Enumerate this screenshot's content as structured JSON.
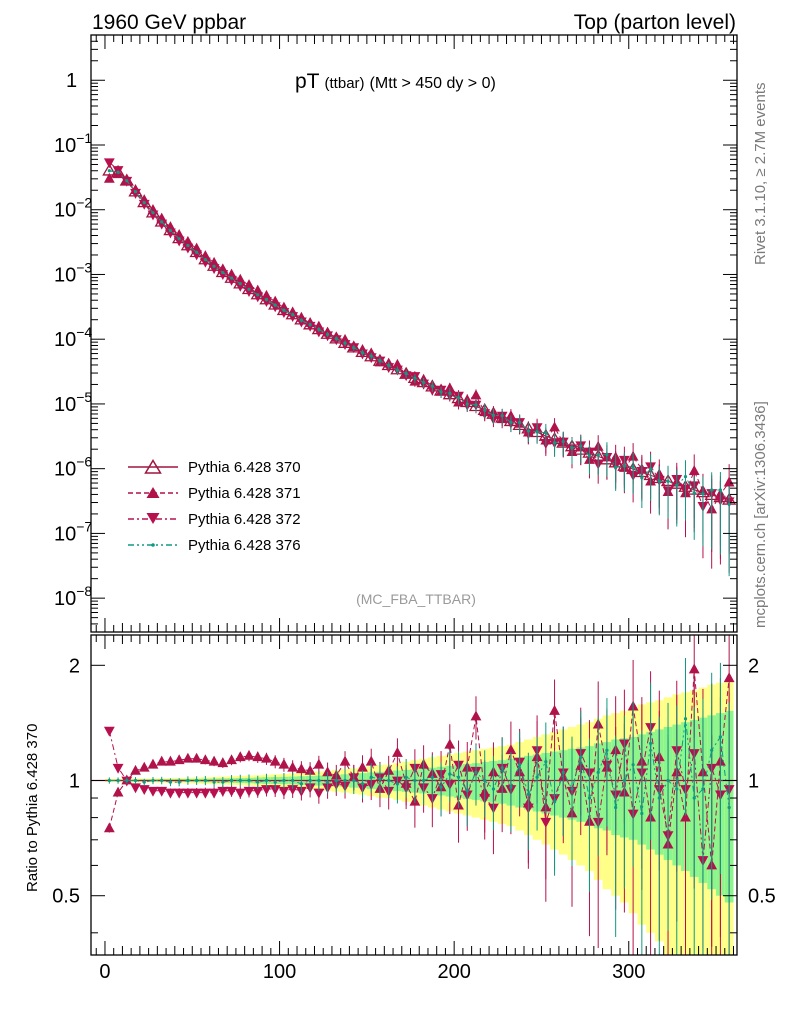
{
  "header": {
    "left": "1960 GeV ppbar",
    "right": "Top (parton level)"
  },
  "side": {
    "rivet": "Rivet 3.1.10, ≥ 2.7M events",
    "mcplots": "mcplots.cern.ch [arXiv:1306.3436]"
  },
  "plot_title": {
    "main": "pT",
    "sub": "(ttbar)",
    "rest": "(Mtt > 450 dy > 0)"
  },
  "analysis_tag": "(MC_FBA_TTBAR)",
  "ratio_ylabel": "Ratio to Pythia 6.428 370",
  "colors": {
    "p370": "#a0153e",
    "p371": "#b0124a",
    "p372": "#b8104f",
    "p376": "#0f9a83",
    "band_outer": "#ffff88",
    "band_inner": "#8cf58c"
  },
  "chart_data": [
    {
      "type": "scatter",
      "panel": "main",
      "yscale": "log",
      "xlim": [
        -8,
        362
      ],
      "ylim": [
        3e-09,
        5
      ],
      "yticks": [
        {
          "v": 1,
          "label": "1",
          "exp": ""
        },
        {
          "v": 0.1,
          "label": "10",
          "exp": "−1"
        },
        {
          "v": 0.01,
          "label": "10",
          "exp": "−2"
        },
        {
          "v": 0.001,
          "label": "10",
          "exp": "−3"
        },
        {
          "v": 0.0001,
          "label": "10",
          "exp": "−4"
        },
        {
          "v": 1e-05,
          "label": "10",
          "exp": "−5"
        },
        {
          "v": 1e-06,
          "label": "10",
          "exp": "−6"
        },
        {
          "v": 1e-07,
          "label": "10",
          "exp": "−7"
        },
        {
          "v": 1e-08,
          "label": "10",
          "exp": "−8"
        }
      ],
      "legend_position": "lower-left",
      "series": [
        {
          "name": "Pythia 6.428 370",
          "marker": "triangle-up-open",
          "dash": "solid",
          "key": "p370"
        },
        {
          "name": "Pythia 6.428 371",
          "marker": "triangle-up",
          "dash": "dashed",
          "key": "p371"
        },
        {
          "name": "Pythia 6.428 372",
          "marker": "triangle-down",
          "dash": "dashdot",
          "key": "p372"
        },
        {
          "name": "Pythia 6.428 376",
          "marker": "dot",
          "dash": "dashdotdot",
          "key": "p376"
        }
      ],
      "reference": {
        "x": [
          2.5,
          7.5,
          12.5,
          17.5,
          22.5,
          27.5,
          32.5,
          37.5,
          42.5,
          47.5,
          52.5,
          57.5,
          62.5,
          67.5,
          72.5,
          77.5,
          82.5,
          87.5,
          92.5,
          97.5,
          102.5,
          107.5,
          112.5,
          117.5,
          122.5,
          127.5,
          132.5,
          137.5,
          142.5,
          147.5,
          152.5,
          157.5,
          162.5,
          167.5,
          172.5,
          177.5,
          182.5,
          187.5,
          192.5,
          197.5,
          202.5,
          207.5,
          212.5,
          217.5,
          222.5,
          227.5,
          232.5,
          237.5,
          242.5,
          247.5,
          252.5,
          257.5,
          262.5,
          267.5,
          272.5,
          277.5,
          282.5,
          287.5,
          292.5,
          297.5,
          302.5,
          307.5,
          312.5,
          317.5,
          322.5,
          327.5,
          332.5,
          337.5,
          342.5,
          347.5,
          352.5,
          357.5
        ],
        "y": [
          0.04,
          0.038,
          0.028,
          0.019,
          0.013,
          0.009,
          0.0065,
          0.0048,
          0.0036,
          0.0028,
          0.0022,
          0.0017,
          0.00135,
          0.00108,
          0.00088,
          0.00072,
          0.00059,
          0.00049,
          0.00041,
          0.00034,
          0.00028,
          0.00024,
          0.0002,
          0.000168,
          0.000142,
          0.00012,
          0.000102,
          8.7e-05,
          7.4e-05,
          6.3e-05,
          5.4e-05,
          4.6e-05,
          3.95e-05,
          3.4e-05,
          2.9e-05,
          2.5e-05,
          2.15e-05,
          1.85e-05,
          1.6e-05,
          1.4e-05,
          1.22e-05,
          1.06e-05,
          9.2e-06,
          8e-06,
          7e-06,
          6.1e-06,
          5.4e-06,
          4.7e-06,
          4.15e-06,
          3.65e-06,
          3.2e-06,
          2.85e-06,
          2.5e-06,
          2.2e-06,
          1.95e-06,
          1.75e-06,
          1.55e-06,
          1.38e-06,
          1.24e-06,
          1.1e-06,
          9.8e-07,
          8.8e-07,
          7.9e-07,
          7.1e-07,
          6.4e-07,
          5.8e-07,
          5.2e-07,
          4.7e-07,
          4.3e-07,
          3.9e-07,
          3.6e-07,
          3.3e-07
        ]
      }
    },
    {
      "type": "scatter",
      "panel": "ratio",
      "yscale": "log",
      "xlim": [
        -8,
        362
      ],
      "ylim": [
        0.35,
        2.4
      ],
      "xticks": [
        0,
        100,
        200,
        300
      ],
      "yticks": [
        {
          "v": 0.5,
          "label": "0.5"
        },
        {
          "v": 1,
          "label": "1"
        },
        {
          "v": 2,
          "label": "2"
        }
      ],
      "ylabel": "Ratio to Pythia 6.428 370",
      "bin_width": 5,
      "x": [
        2.5,
        7.5,
        12.5,
        17.5,
        22.5,
        27.5,
        32.5,
        37.5,
        42.5,
        47.5,
        52.5,
        57.5,
        62.5,
        67.5,
        72.5,
        77.5,
        82.5,
        87.5,
        92.5,
        97.5,
        102.5,
        107.5,
        112.5,
        117.5,
        122.5,
        127.5,
        132.5,
        137.5,
        142.5,
        147.5,
        152.5,
        157.5,
        162.5,
        167.5,
        172.5,
        177.5,
        182.5,
        187.5,
        192.5,
        197.5,
        202.5,
        207.5,
        212.5,
        217.5,
        222.5,
        227.5,
        232.5,
        237.5,
        242.5,
        247.5,
        252.5,
        257.5,
        262.5,
        267.5,
        272.5,
        277.5,
        282.5,
        287.5,
        292.5,
        297.5,
        302.5,
        307.5,
        312.5,
        317.5,
        322.5,
        327.5,
        332.5,
        337.5,
        342.5,
        347.5,
        352.5,
        357.5
      ],
      "band_outer": [
        0.01,
        0.01,
        0.01,
        0.012,
        0.012,
        0.013,
        0.014,
        0.015,
        0.016,
        0.017,
        0.018,
        0.02,
        0.022,
        0.024,
        0.026,
        0.028,
        0.03,
        0.032,
        0.035,
        0.038,
        0.04,
        0.044,
        0.048,
        0.052,
        0.056,
        0.06,
        0.065,
        0.07,
        0.076,
        0.082,
        0.09,
        0.098,
        0.1,
        0.11,
        0.12,
        0.13,
        0.14,
        0.15,
        0.16,
        0.17,
        0.18,
        0.19,
        0.2,
        0.21,
        0.22,
        0.23,
        0.24,
        0.26,
        0.28,
        0.3,
        0.32,
        0.34,
        0.36,
        0.38,
        0.4,
        0.42,
        0.45,
        0.48,
        0.5,
        0.52,
        0.55,
        0.58,
        0.6,
        0.62,
        0.65,
        0.68,
        0.7,
        0.72,
        0.75,
        0.78,
        0.8,
        0.82
      ],
      "band_inner": [
        0.005,
        0.005,
        0.006,
        0.006,
        0.007,
        0.007,
        0.008,
        0.008,
        0.009,
        0.009,
        0.01,
        0.011,
        0.012,
        0.013,
        0.014,
        0.015,
        0.016,
        0.018,
        0.02,
        0.021,
        0.022,
        0.024,
        0.026,
        0.028,
        0.03,
        0.032,
        0.035,
        0.038,
        0.042,
        0.045,
        0.05,
        0.054,
        0.058,
        0.062,
        0.066,
        0.07,
        0.075,
        0.08,
        0.086,
        0.092,
        0.1,
        0.105,
        0.11,
        0.118,
        0.125,
        0.13,
        0.14,
        0.15,
        0.16,
        0.17,
        0.18,
        0.19,
        0.2,
        0.21,
        0.22,
        0.23,
        0.25,
        0.26,
        0.28,
        0.29,
        0.3,
        0.32,
        0.34,
        0.36,
        0.38,
        0.4,
        0.42,
        0.44,
        0.46,
        0.48,
        0.5,
        0.52
      ],
      "series": [
        {
          "name": "Pythia 6.428 371",
          "key": "p371",
          "marker": "triangle-up",
          "dash": "dashed",
          "values": [
            0.75,
            0.93,
            1.0,
            1.06,
            1.08,
            1.1,
            1.12,
            1.12,
            1.13,
            1.14,
            1.14,
            1.13,
            1.12,
            1.11,
            1.13,
            1.15,
            1.16,
            1.15,
            1.14,
            1.12,
            1.1,
            1.08,
            1.07,
            1.06,
            1.1,
            1.05,
            1.03,
            1.12,
            1.02,
            1.08,
            1.12,
            0.95,
            1.06,
            1.18,
            0.98,
            0.88,
            1.1,
            1.04,
            0.96,
            1.24,
            0.86,
            1.08,
            1.47,
            0.93,
            1.05,
            0.95,
            1.2,
            1.05,
            0.87,
            1.15,
            0.85,
            1.52,
            1.02,
            0.82,
            1.09,
            0.78,
            1.4,
            1.08,
            1.2,
            0.93,
            1.56,
            1.12,
            0.8,
            1.15,
            0.68,
            1.05,
            0.8,
            1.95,
            1.05,
            0.6,
            1.12,
            1.85
          ]
        },
        {
          "name": "Pythia 6.428 372",
          "key": "p372",
          "marker": "triangle-down",
          "dash": "dashdot",
          "values": [
            1.35,
            1.08,
            1.0,
            0.96,
            0.95,
            0.94,
            0.94,
            0.93,
            0.93,
            0.93,
            0.93,
            0.93,
            0.93,
            0.94,
            0.94,
            0.93,
            0.94,
            0.94,
            0.95,
            0.95,
            0.94,
            0.95,
            0.94,
            0.96,
            0.93,
            0.96,
            0.98,
            0.97,
            1.02,
            0.96,
            0.98,
            1.02,
            0.94,
            1.0,
            0.96,
            1.08,
            0.96,
            0.9,
            1.04,
            0.98,
            1.1,
            0.92,
            1.06,
            0.9,
            0.85,
            1.08,
            0.95,
            1.12,
            0.85,
            1.2,
            0.78,
            0.9,
            1.05,
            0.94,
            1.18,
            1.05,
            0.78,
            1.1,
            0.92,
            1.25,
            0.82,
            1.05,
            1.38,
            0.95,
            0.72,
            1.2,
            0.95,
            1.18,
            0.62,
            1.08,
            0.92,
            0.95
          ]
        },
        {
          "name": "Pythia 6.428 376",
          "key": "p376",
          "marker": "dot",
          "dash": "dashdotdot",
          "values": [
            1.0,
            1.0,
            1.0,
            1.0,
            0.99,
            1.0,
            1.0,
            0.99,
            0.99,
            1.0,
            1.0,
            1.0,
            0.99,
            0.99,
            1.0,
            1.0,
            1.0,
            0.99,
            1.0,
            0.99,
            1.0,
            1.0,
            0.98,
            1.0,
            1.0,
            0.99,
            1.0,
            1.0,
            1.0,
            0.98,
            1.02,
            1.01,
            1.0,
            0.98,
            1.02,
            1.0,
            1.0,
            1.02,
            0.96,
            1.04,
            1.02,
            0.94,
            1.05,
            1.0,
            0.95,
            1.08,
            0.96,
            1.1,
            0.92,
            1.02,
            1.12,
            0.88,
            1.05,
            0.95,
            1.15,
            0.9,
            1.05,
            1.2,
            0.85,
            1.0,
            1.1,
            0.82,
            1.25,
            0.9,
            1.0,
            0.95,
            1.45,
            0.9,
            0.95,
            1.2,
            1.3,
            0.85
          ]
        }
      ]
    }
  ]
}
